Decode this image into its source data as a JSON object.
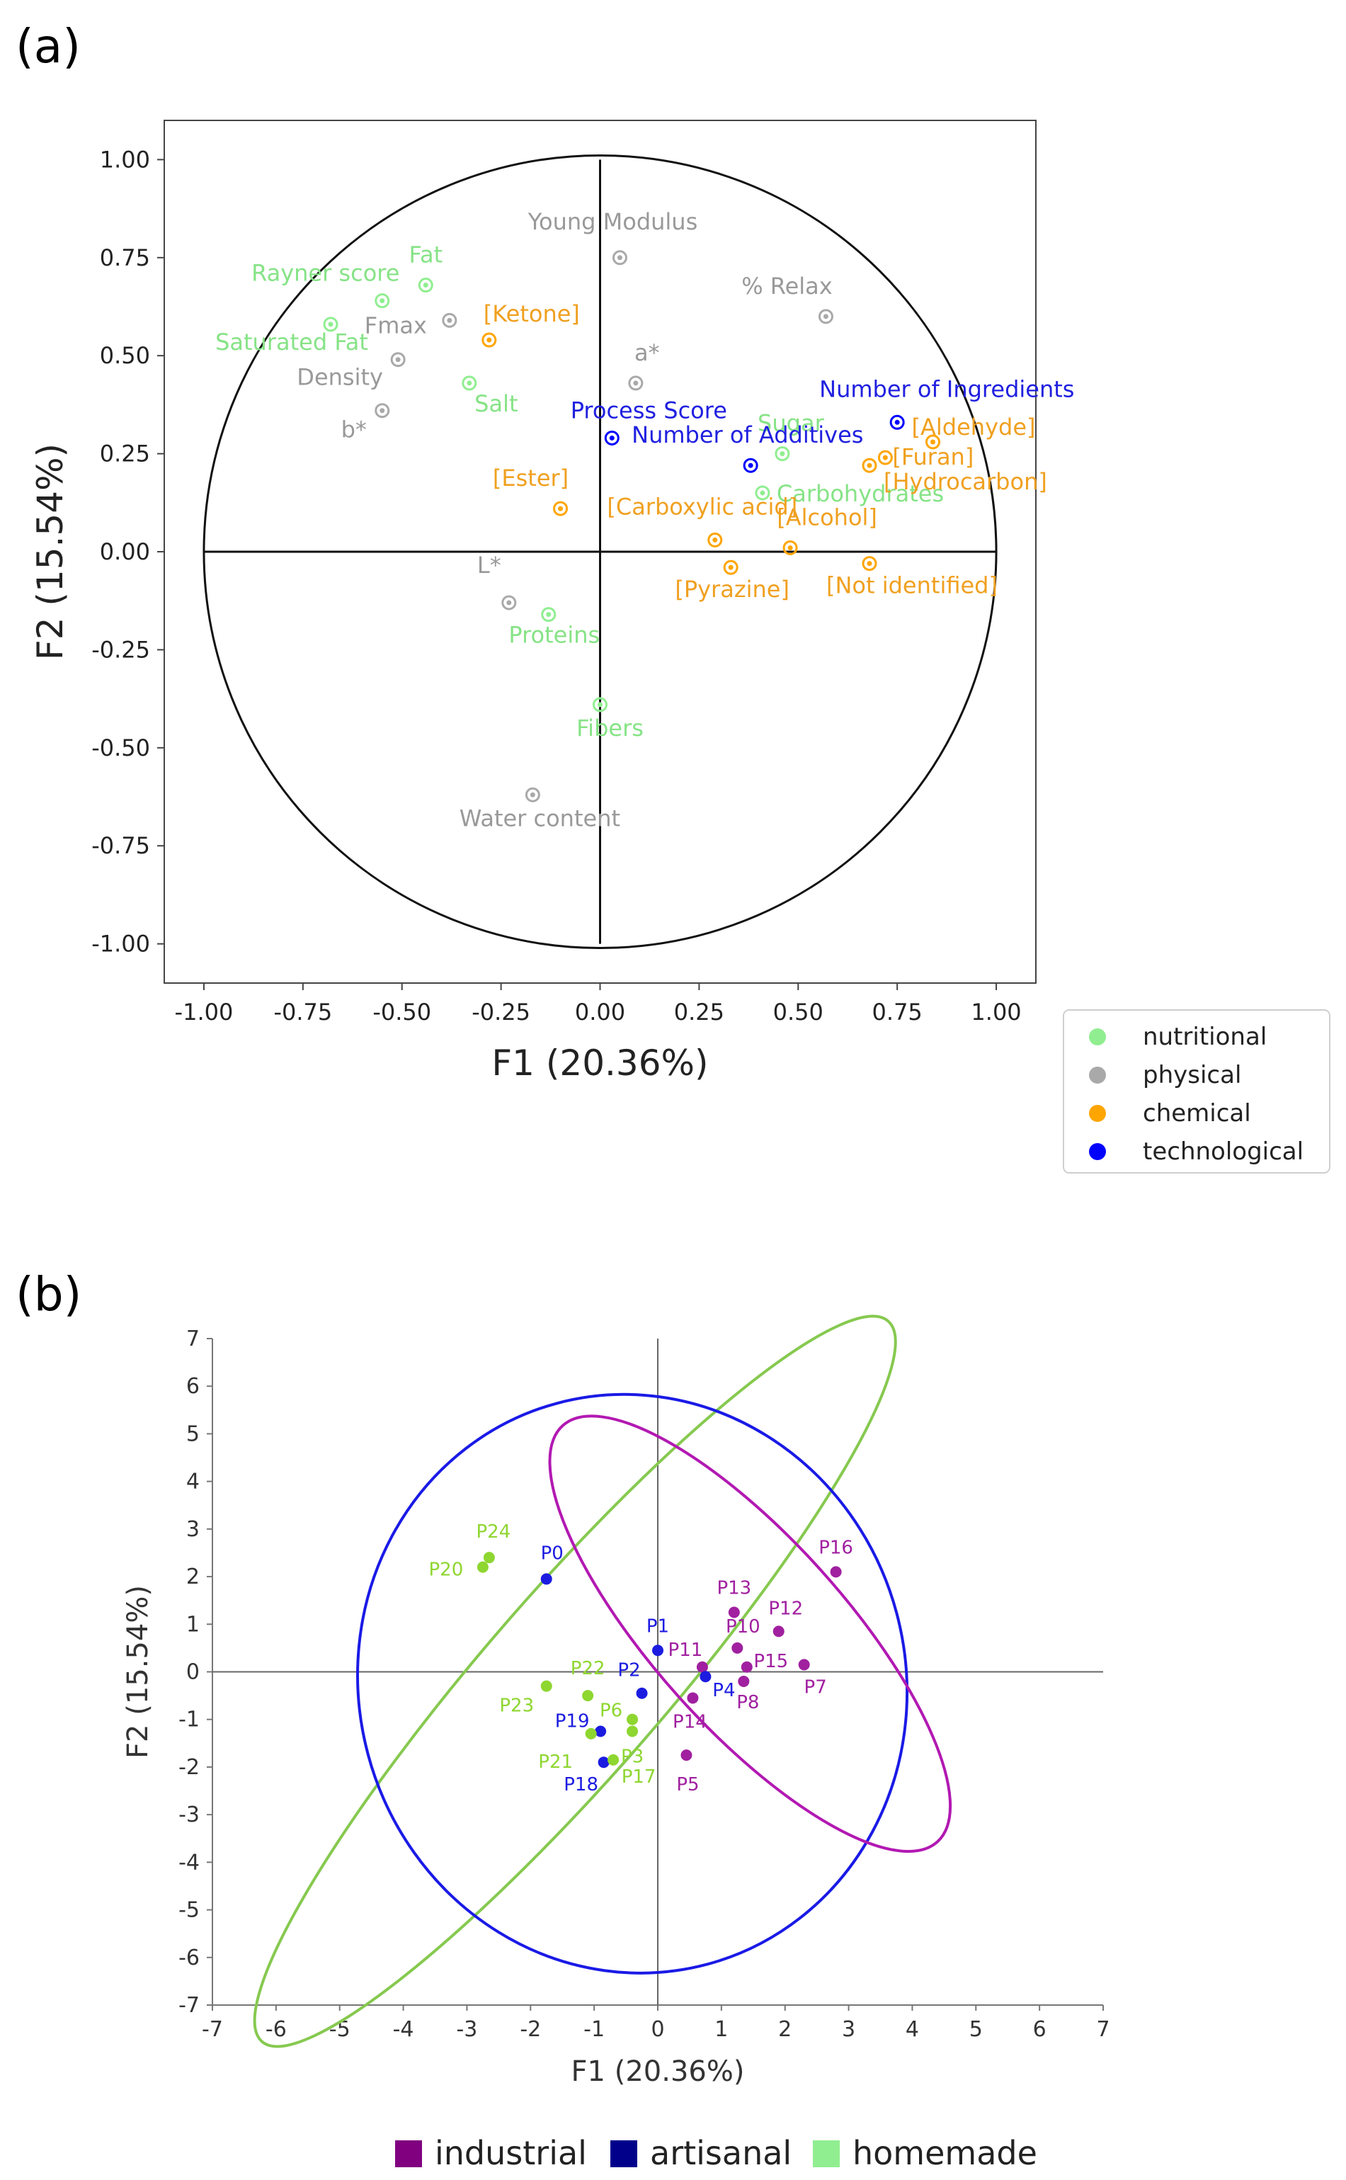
{
  "panels": {
    "a": "(a)",
    "b": "(b)"
  },
  "chart_data": [
    {
      "type": "scatter",
      "subtype": "correlation-circle",
      "title": "",
      "xlabel": "F1 (20.36%)",
      "ylabel": "F2 (15.54%)",
      "xlim": [
        -1.1,
        1.1
      ],
      "ylim": [
        -1.1,
        1.1
      ],
      "xticks": [
        "-1.00",
        "-0.75",
        "-0.50",
        "-0.25",
        "0.00",
        "0.25",
        "0.50",
        "0.75",
        "1.00"
      ],
      "yticks": [
        "1.00",
        "0.75",
        "0.50",
        "0.25",
        "0.00",
        "-0.25",
        "-0.50",
        "-0.75",
        "-1.00"
      ],
      "grid": false,
      "unit_circle": true,
      "legend_position": "lower-right outside",
      "categories": [
        {
          "name": "nutritional",
          "color": "#90ee90"
        },
        {
          "name": "physical",
          "color": "#a9a9a9"
        },
        {
          "name": "chemical",
          "color": "#ffa500"
        },
        {
          "name": "technological",
          "color": "#0000ff"
        }
      ],
      "points": [
        {
          "label": "Rayner score",
          "x": -0.55,
          "y": 0.64,
          "cat": "nutritional"
        },
        {
          "label": "Fat",
          "x": -0.44,
          "y": 0.68,
          "cat": "nutritional"
        },
        {
          "label": "Saturated Fat",
          "x": -0.68,
          "y": 0.58,
          "cat": "nutritional"
        },
        {
          "label": "Salt",
          "x": -0.33,
          "y": 0.43,
          "cat": "nutritional"
        },
        {
          "label": "Sugar",
          "x": 0.46,
          "y": 0.25,
          "cat": "nutritional"
        },
        {
          "label": "Carbohydrates",
          "x": 0.41,
          "y": 0.15,
          "cat": "nutritional"
        },
        {
          "label": "Proteins",
          "x": -0.13,
          "y": -0.16,
          "cat": "nutritional"
        },
        {
          "label": "Fibers",
          "x": 0.0,
          "y": -0.39,
          "cat": "nutritional"
        },
        {
          "label": "Young Modulus",
          "x": 0.05,
          "y": 0.75,
          "cat": "physical"
        },
        {
          "label": "% Relax",
          "x": 0.57,
          "y": 0.6,
          "cat": "physical"
        },
        {
          "label": "Fmax",
          "x": -0.38,
          "y": 0.59,
          "cat": "physical"
        },
        {
          "label": "Density",
          "x": -0.51,
          "y": 0.49,
          "cat": "physical"
        },
        {
          "label": "b*",
          "x": -0.55,
          "y": 0.36,
          "cat": "physical"
        },
        {
          "label": "a*",
          "x": 0.09,
          "y": 0.43,
          "cat": "physical"
        },
        {
          "label": "L*",
          "x": -0.23,
          "y": -0.13,
          "cat": "physical"
        },
        {
          "label": "Water content",
          "x": -0.17,
          "y": -0.62,
          "cat": "physical"
        },
        {
          "label": "[Ketone]",
          "x": -0.28,
          "y": 0.54,
          "cat": "chemical"
        },
        {
          "label": "[Aldehyde]",
          "x": 0.84,
          "y": 0.28,
          "cat": "chemical"
        },
        {
          "label": "[Furan]",
          "x": 0.72,
          "y": 0.24,
          "cat": "chemical"
        },
        {
          "label": "[Hydrocarbon]",
          "x": 0.68,
          "y": 0.22,
          "cat": "chemical"
        },
        {
          "label": "[Ester]",
          "x": -0.1,
          "y": 0.11,
          "cat": "chemical"
        },
        {
          "label": "[Carboxylic acid]",
          "x": 0.29,
          "y": 0.03,
          "cat": "chemical"
        },
        {
          "label": "[Alcohol]",
          "x": 0.48,
          "y": 0.01,
          "cat": "chemical"
        },
        {
          "label": "[Pyrazine]",
          "x": 0.33,
          "y": -0.04,
          "cat": "chemical"
        },
        {
          "label": "[Not identified]",
          "x": 0.68,
          "y": -0.03,
          "cat": "chemical"
        },
        {
          "label": "Process Score",
          "x": 0.03,
          "y": 0.29,
          "cat": "technological"
        },
        {
          "label": "Number of Additives",
          "x": 0.38,
          "y": 0.22,
          "cat": "technological"
        },
        {
          "label": "Number of Ingredients",
          "x": 0.75,
          "y": 0.33,
          "cat": "technological"
        }
      ]
    },
    {
      "type": "scatter",
      "title": "",
      "xlabel": "F1 (20.36%)",
      "ylabel": "F2 (15.54%)",
      "xlim": [
        -7,
        7
      ],
      "ylim": [
        -7,
        7
      ],
      "xticks": [
        "-7",
        "-6",
        "-5",
        "-4",
        "-3",
        "-2",
        "-1",
        "0",
        "1",
        "2",
        "3",
        "4",
        "5",
        "6",
        "7"
      ],
      "yticks": [
        "7",
        "6",
        "5",
        "4",
        "3",
        "2",
        "1",
        "0",
        "-1",
        "-2",
        "-3",
        "-4",
        "-5",
        "-6",
        "-7"
      ],
      "grid": false,
      "legend_position": "bottom",
      "groups": [
        {
          "name": "industrial",
          "color": "#800080",
          "ellipse_color": "#b219b2"
        },
        {
          "name": "artisanal",
          "color": "#00008b",
          "ellipse_color": "#1a1ae6"
        },
        {
          "name": "homemade",
          "color": "#90ee90",
          "ellipse_color": "#86c94f"
        }
      ],
      "point_colors": {
        "industrial": "#a020a0",
        "artisanal": "#1c1ce0",
        "homemade": "#8ed630"
      },
      "points": [
        {
          "label": "P16",
          "x": 2.8,
          "y": 2.1,
          "group": "industrial"
        },
        {
          "label": "P13",
          "x": 1.2,
          "y": 1.25,
          "group": "industrial"
        },
        {
          "label": "P12",
          "x": 1.9,
          "y": 0.85,
          "group": "industrial"
        },
        {
          "label": "P10",
          "x": 1.25,
          "y": 0.5,
          "group": "industrial"
        },
        {
          "label": "P15",
          "x": 1.4,
          "y": 0.1,
          "group": "industrial"
        },
        {
          "label": "P7",
          "x": 2.3,
          "y": 0.15,
          "group": "industrial"
        },
        {
          "label": "P11",
          "x": 0.7,
          "y": 0.1,
          "group": "industrial"
        },
        {
          "label": "P8",
          "x": 1.35,
          "y": -0.2,
          "group": "industrial"
        },
        {
          "label": "P14",
          "x": 0.55,
          "y": -0.55,
          "group": "industrial"
        },
        {
          "label": "P5",
          "x": 0.45,
          "y": -1.75,
          "group": "industrial"
        },
        {
          "label": "P0",
          "x": -1.75,
          "y": 1.95,
          "group": "artisanal"
        },
        {
          "label": "P1",
          "x": 0.0,
          "y": 0.45,
          "group": "artisanal"
        },
        {
          "label": "P2",
          "x": -0.25,
          "y": -0.45,
          "group": "artisanal"
        },
        {
          "label": "P4",
          "x": 0.75,
          "y": -0.1,
          "group": "artisanal"
        },
        {
          "label": "P19",
          "x": -0.9,
          "y": -1.25,
          "group": "artisanal"
        },
        {
          "label": "P18",
          "x": -0.85,
          "y": -1.9,
          "group": "artisanal"
        },
        {
          "label": "P24",
          "x": -2.65,
          "y": 2.4,
          "group": "homemade"
        },
        {
          "label": "P20",
          "x": -2.75,
          "y": 2.2,
          "group": "homemade"
        },
        {
          "label": "P22",
          "x": -1.1,
          "y": -0.5,
          "group": "homemade"
        },
        {
          "label": "P23",
          "x": -1.75,
          "y": -0.3,
          "group": "homemade"
        },
        {
          "label": "P6",
          "x": -0.4,
          "y": -1.0,
          "group": "homemade"
        },
        {
          "label": "P21",
          "x": -1.05,
          "y": -1.3,
          "group": "homemade"
        },
        {
          "label": "P3",
          "x": -0.4,
          "y": -1.25,
          "group": "homemade"
        },
        {
          "label": "P17",
          "x": -0.7,
          "y": -1.85,
          "group": "homemade"
        }
      ],
      "ellipses": [
        {
          "group": "homemade",
          "cx": -1.3,
          "cy": -0.2,
          "rx": 7.5,
          "ry": 1.9,
          "angle": -49
        },
        {
          "group": "artisanal",
          "cx": -0.4,
          "cy": -0.25,
          "rx": 4.3,
          "ry": 6.1,
          "angle": -15
        },
        {
          "group": "industrial",
          "cx": 1.45,
          "cy": 0.8,
          "rx": 4.4,
          "ry": 2.0,
          "angle": 48
        }
      ]
    }
  ]
}
